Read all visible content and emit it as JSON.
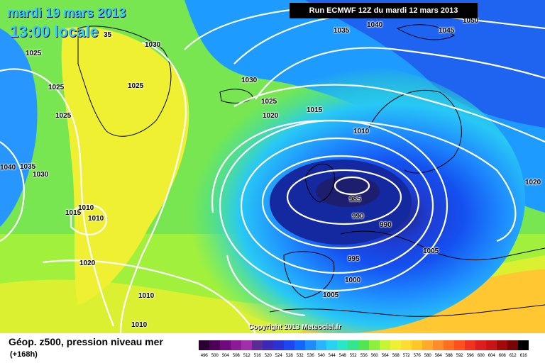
{
  "header": {
    "date_text": "mardi 19 mars 2013",
    "time_text": "13:00 locale",
    "run_text": "Run ECMWF 12Z du mardi 12 mars 2013"
  },
  "map": {
    "copyright": "Copyright 2013 Meteociel.fr",
    "pressure_labels": [
      {
        "id": "p1",
        "value": "1035"
      },
      {
        "id": "p2",
        "value": "1040"
      },
      {
        "id": "p3",
        "value": "1045"
      },
      {
        "id": "p4",
        "value": "1050"
      },
      {
        "id": "p5",
        "value": "35"
      },
      {
        "id": "p6",
        "value": "1030"
      },
      {
        "id": "p7",
        "value": "1025"
      },
      {
        "id": "p8",
        "value": "1025"
      },
      {
        "id": "p9",
        "value": "1025"
      },
      {
        "id": "p10",
        "value": "1025"
      },
      {
        "id": "p11",
        "value": "1030"
      },
      {
        "id": "p12",
        "value": "1025"
      },
      {
        "id": "p13",
        "value": "1020"
      },
      {
        "id": "p14",
        "value": "1015"
      },
      {
        "id": "p15",
        "value": "1010"
      },
      {
        "id": "p16",
        "value": "1040"
      },
      {
        "id": "p17",
        "value": "1035"
      },
      {
        "id": "p18",
        "value": "1030"
      },
      {
        "id": "p19",
        "value": "1015"
      },
      {
        "id": "p20",
        "value": "1010"
      },
      {
        "id": "p21",
        "value": "1010"
      },
      {
        "id": "p22",
        "value": "985"
      },
      {
        "id": "p23",
        "value": "990"
      },
      {
        "id": "p24",
        "value": "990"
      },
      {
        "id": "p25",
        "value": "1020"
      },
      {
        "id": "p26",
        "value": "1005"
      },
      {
        "id": "p27",
        "value": "995"
      },
      {
        "id": "p28",
        "value": "1000"
      },
      {
        "id": "p29",
        "value": "1005"
      },
      {
        "id": "p30",
        "value": "1020"
      },
      {
        "id": "p31",
        "value": "1010"
      },
      {
        "id": "p32",
        "value": "1010"
      }
    ]
  },
  "footer": {
    "title": "Géop. z500, pression niveau mer",
    "lead": "(+168h)"
  },
  "legend": {
    "ticks": [
      "496",
      "500",
      "504",
      "508",
      "512",
      "516",
      "520",
      "524",
      "528",
      "532",
      "536",
      "540",
      "544",
      "548",
      "552",
      "556",
      "560",
      "564",
      "568",
      "572",
      "576",
      "580",
      "584",
      "588",
      "592",
      "596",
      "600",
      "604",
      "608",
      "612",
      "616"
    ],
    "colors": [
      "#2a0032",
      "#4b0055",
      "#6e0a7a",
      "#8c1a96",
      "#a030aa",
      "#5a2c96",
      "#3c28b4",
      "#2a32d2",
      "#1e46f0",
      "#1464ff",
      "#1e8cff",
      "#28b4ff",
      "#28d2f0",
      "#28e6c8",
      "#32e68c",
      "#50e650",
      "#8cf03c",
      "#c8f532",
      "#f0f032",
      "#ffdc32",
      "#ffc828",
      "#ffaa28",
      "#ff8c28",
      "#ff6e1e",
      "#ff501e",
      "#f0321e",
      "#dc1e1e",
      "#c81414",
      "#a00a0a",
      "#780505",
      "#000000"
    ]
  }
}
